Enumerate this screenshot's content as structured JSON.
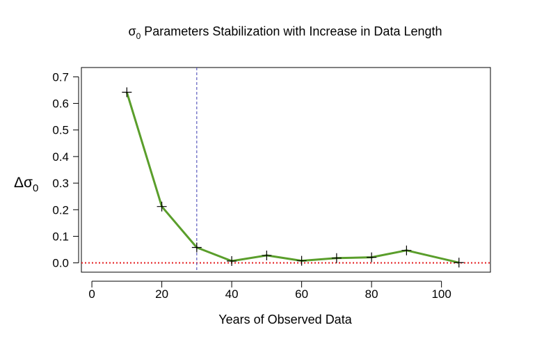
{
  "chart_data": {
    "type": "line",
    "title": {
      "symbol": "σ",
      "subscript": "0",
      "text": " Parameters Stabilization with Increase in Data Length"
    },
    "xlabel": "Years of Observed Data",
    "ylabel": {
      "symbol": "Δσ",
      "subscript": "0"
    },
    "xlim": [
      -3,
      114
    ],
    "ylim": [
      -0.035,
      0.735
    ],
    "x_ticks": [
      0,
      20,
      40,
      60,
      80,
      100
    ],
    "x_tick_labels": [
      "0",
      "20",
      "40",
      "60",
      "80",
      "100"
    ],
    "y_ticks": [
      0.0,
      0.1,
      0.2,
      0.3,
      0.4,
      0.5,
      0.6,
      0.7
    ],
    "y_tick_labels": [
      "0.0",
      "0.1",
      "0.2",
      "0.3",
      "0.4",
      "0.5",
      "0.6",
      "0.7"
    ],
    "grid": false,
    "series": [
      {
        "x": [
          10,
          20,
          30,
          40,
          50,
          60,
          70,
          80,
          90,
          105
        ],
        "y": [
          0.642,
          0.212,
          0.058,
          0.007,
          0.028,
          0.008,
          0.018,
          0.021,
          0.047,
          0.001
        ],
        "color": "#5a9e2b",
        "marker": "plus"
      }
    ],
    "reference_lines": [
      {
        "orientation": "horizontal",
        "value": 0.0,
        "color": "#e41a1c",
        "style": "dotted"
      },
      {
        "orientation": "vertical",
        "value": 30,
        "color": "#3b3bb0",
        "style": "dashed"
      }
    ]
  }
}
